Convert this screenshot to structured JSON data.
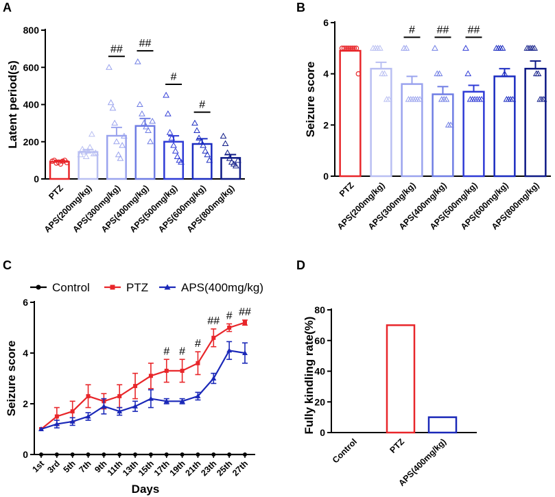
{
  "chart_data": [
    {
      "panel": "A",
      "type": "bar",
      "ylabel": "Latent period(s)",
      "ylim": [
        0,
        800
      ],
      "yticks": [
        0,
        200,
        400,
        600,
        800
      ],
      "categories": [
        "PTZ",
        "APS(200mg/kg)",
        "APS(300mg/kg)",
        "APS(400mg/kg)",
        "APS(500mg/kg)",
        "APS(600mg/kg)",
        "APS(800mg/kg)"
      ],
      "values": [
        92,
        145,
        232,
        285,
        200,
        188,
        113
      ],
      "errors": [
        8,
        12,
        45,
        40,
        32,
        28,
        18
      ],
      "colors": [
        "#e8262a",
        "#b9bff2",
        "#9aa3ee",
        "#6f7de4",
        "#2e3ad6",
        "#1a2bc0",
        "#0e1a86"
      ],
      "annotations": [
        "",
        "",
        "##",
        "##",
        "#",
        "#",
        ""
      ],
      "points": [
        [
          95,
          100,
          85,
          90,
          80,
          95,
          100,
          88
        ],
        [
          130,
          160,
          145,
          120,
          150,
          170,
          240,
          135,
          140
        ],
        [
          600,
          410,
          380,
          300,
          200,
          130,
          110,
          180,
          230
        ],
        [
          630,
          400,
          350,
          300,
          280,
          260,
          200,
          310
        ],
        [
          450,
          350,
          250,
          220,
          180,
          150,
          120,
          100,
          90
        ],
        [
          300,
          260,
          220,
          200,
          180,
          150,
          130,
          100
        ],
        [
          230,
          190,
          140,
          110,
          90,
          80,
          70,
          100
        ]
      ]
    },
    {
      "panel": "B",
      "type": "bar",
      "ylabel": "Seizure score",
      "ylim": [
        0,
        6
      ],
      "yticks": [
        0,
        2,
        4,
        6
      ],
      "categories": [
        "PTZ",
        "APS(200mg/kg)",
        "APS(300mg/kg)",
        "APS(400mg/kg)",
        "APS(500mg/kg)",
        "APS(600mg/kg)",
        "APS(800mg/kg)"
      ],
      "values": [
        4.9,
        4.2,
        3.6,
        3.2,
        3.3,
        3.9,
        4.2
      ],
      "errors": [
        0.1,
        0.25,
        0.3,
        0.3,
        0.25,
        0.3,
        0.3
      ],
      "colors": [
        "#e8262a",
        "#b9bff2",
        "#9aa3ee",
        "#6f7de4",
        "#2e3ad6",
        "#1a2bc0",
        "#0e1a86"
      ],
      "annotations": [
        "",
        "",
        "#",
        "##",
        "##",
        "",
        ""
      ],
      "points": [
        [
          5,
          5,
          5,
          5,
          5,
          5,
          5,
          5,
          4
        ],
        [
          5,
          5,
          5,
          5,
          4,
          4,
          3,
          3
        ],
        [
          5,
          5,
          3,
          3,
          3,
          3,
          3,
          3
        ],
        [
          5,
          4,
          4,
          3,
          3,
          3,
          2,
          2
        ],
        [
          5,
          4,
          3,
          3,
          3,
          3,
          3,
          3
        ],
        [
          5,
          5,
          5,
          5,
          4,
          3,
          3,
          3,
          3
        ],
        [
          5,
          5,
          5,
          5,
          5,
          4,
          4,
          3,
          3,
          3
        ]
      ]
    },
    {
      "panel": "C",
      "type": "line",
      "ylabel": "Seizure score",
      "xlabel": "Days",
      "ylim": [
        0,
        6
      ],
      "yticks": [
        0,
        2,
        4,
        6
      ],
      "categories": [
        "1st",
        "3rd",
        "5th",
        "7th",
        "9th",
        "11th",
        "13th",
        "15th",
        "17th",
        "19th",
        "21th",
        "23th",
        "25th",
        "27th"
      ],
      "series": [
        {
          "name": "Control",
          "color": "#000000",
          "values": [
            0,
            0,
            0,
            0,
            0,
            0,
            0,
            0,
            0,
            0,
            0,
            0,
            0,
            0
          ],
          "errors": [
            0,
            0,
            0,
            0,
            0,
            0,
            0,
            0,
            0,
            0,
            0,
            0,
            0,
            0
          ]
        },
        {
          "name": "PTZ",
          "color": "#e8262a",
          "values": [
            1.0,
            1.5,
            1.7,
            2.3,
            2.1,
            2.3,
            2.7,
            3.1,
            3.3,
            3.3,
            3.6,
            4.6,
            5.0,
            5.2
          ],
          "errors": [
            0,
            0.35,
            0.4,
            0.45,
            0.3,
            0.45,
            0.5,
            0.5,
            0.45,
            0.45,
            0.45,
            0.35,
            0.15,
            0.1
          ]
        },
        {
          "name": "APS(400mg/kg)",
          "color": "#1a28b8",
          "values": [
            1.0,
            1.2,
            1.3,
            1.5,
            1.9,
            1.7,
            1.9,
            2.2,
            2.1,
            2.1,
            2.3,
            3.0,
            4.1,
            4.0
          ],
          "errors": [
            0,
            0.15,
            0.15,
            0.15,
            0.3,
            0.15,
            0.2,
            0.35,
            0.1,
            0.1,
            0.15,
            0.2,
            0.35,
            0.4
          ]
        }
      ],
      "annotations": [
        "",
        "",
        "",
        "",
        "",
        "",
        "",
        "",
        "#",
        "#",
        "#",
        "##",
        "#",
        "##"
      ]
    },
    {
      "panel": "D",
      "type": "bar",
      "ylabel": "Fully kindling rate(%)",
      "ylim": [
        0,
        80
      ],
      "yticks": [
        0,
        20,
        40,
        60,
        80
      ],
      "categories": [
        "Control",
        "PTZ",
        "APS(400mg/kg)"
      ],
      "values": [
        0,
        70,
        10
      ],
      "colors": [
        "#000000",
        "#e8262a",
        "#1a28b8"
      ]
    }
  ]
}
